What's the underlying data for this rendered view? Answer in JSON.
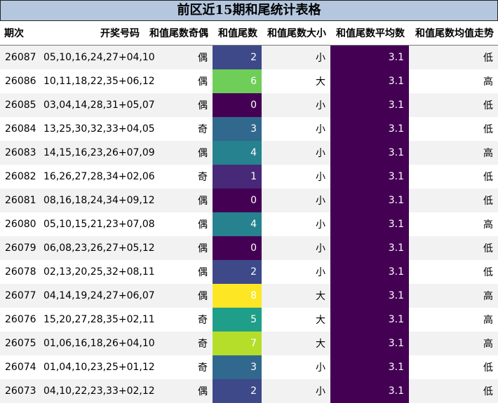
{
  "title": "前区近15期和尾统计表格",
  "headers": [
    "期次",
    "开奖号码",
    "和值尾数奇偶",
    "和值尾数",
    "和值尾数大小",
    "和值尾数平均数",
    "和值尾数均值走势"
  ],
  "colors": {
    "title_bg": "#b4c7df",
    "row_alt": "#f2f2f2",
    "avg_bg": "#440154",
    "tail_scale": {
      "0": "#440154",
      "1": "#482878",
      "2": "#3e4989",
      "3": "#31688e",
      "4": "#26828e",
      "5": "#1f9e89",
      "6": "#6ece58",
      "7": "#b5de2b",
      "8": "#fde725"
    }
  },
  "rows": [
    {
      "issue": "26087",
      "numbers": "05,10,16,24,27+04,10",
      "parity": "偶",
      "tail": "2",
      "size": "小",
      "avg": "3.1",
      "trend": "低"
    },
    {
      "issue": "26086",
      "numbers": "10,11,18,22,35+06,12",
      "parity": "偶",
      "tail": "6",
      "size": "大",
      "avg": "3.1",
      "trend": "高"
    },
    {
      "issue": "26085",
      "numbers": "03,04,14,28,31+05,07",
      "parity": "偶",
      "tail": "0",
      "size": "小",
      "avg": "3.1",
      "trend": "低"
    },
    {
      "issue": "26084",
      "numbers": "13,25,30,32,33+04,05",
      "parity": "奇",
      "tail": "3",
      "size": "小",
      "avg": "3.1",
      "trend": "低"
    },
    {
      "issue": "26083",
      "numbers": "14,15,16,23,26+07,09",
      "parity": "偶",
      "tail": "4",
      "size": "小",
      "avg": "3.1",
      "trend": "高"
    },
    {
      "issue": "26082",
      "numbers": "16,26,27,28,34+02,06",
      "parity": "奇",
      "tail": "1",
      "size": "小",
      "avg": "3.1",
      "trend": "低"
    },
    {
      "issue": "26081",
      "numbers": "08,16,18,24,34+09,12",
      "parity": "偶",
      "tail": "0",
      "size": "小",
      "avg": "3.1",
      "trend": "低"
    },
    {
      "issue": "26080",
      "numbers": "05,10,15,21,23+07,08",
      "parity": "偶",
      "tail": "4",
      "size": "小",
      "avg": "3.1",
      "trend": "高"
    },
    {
      "issue": "26079",
      "numbers": "06,08,23,26,27+05,12",
      "parity": "偶",
      "tail": "0",
      "size": "小",
      "avg": "3.1",
      "trend": "低"
    },
    {
      "issue": "26078",
      "numbers": "02,13,20,25,32+08,11",
      "parity": "偶",
      "tail": "2",
      "size": "小",
      "avg": "3.1",
      "trend": "低"
    },
    {
      "issue": "26077",
      "numbers": "04,14,19,24,27+06,07",
      "parity": "偶",
      "tail": "8",
      "size": "大",
      "avg": "3.1",
      "trend": "高"
    },
    {
      "issue": "26076",
      "numbers": "15,20,27,28,35+02,11",
      "parity": "奇",
      "tail": "5",
      "size": "大",
      "avg": "3.1",
      "trend": "高"
    },
    {
      "issue": "26075",
      "numbers": "01,06,16,18,26+04,10",
      "parity": "奇",
      "tail": "7",
      "size": "大",
      "avg": "3.1",
      "trend": "高"
    },
    {
      "issue": "26074",
      "numbers": "01,04,10,23,25+01,12",
      "parity": "奇",
      "tail": "3",
      "size": "小",
      "avg": "3.1",
      "trend": "低"
    },
    {
      "issue": "26073",
      "numbers": "04,10,22,23,33+02,12",
      "parity": "偶",
      "tail": "2",
      "size": "小",
      "avg": "3.1",
      "trend": "低"
    }
  ]
}
